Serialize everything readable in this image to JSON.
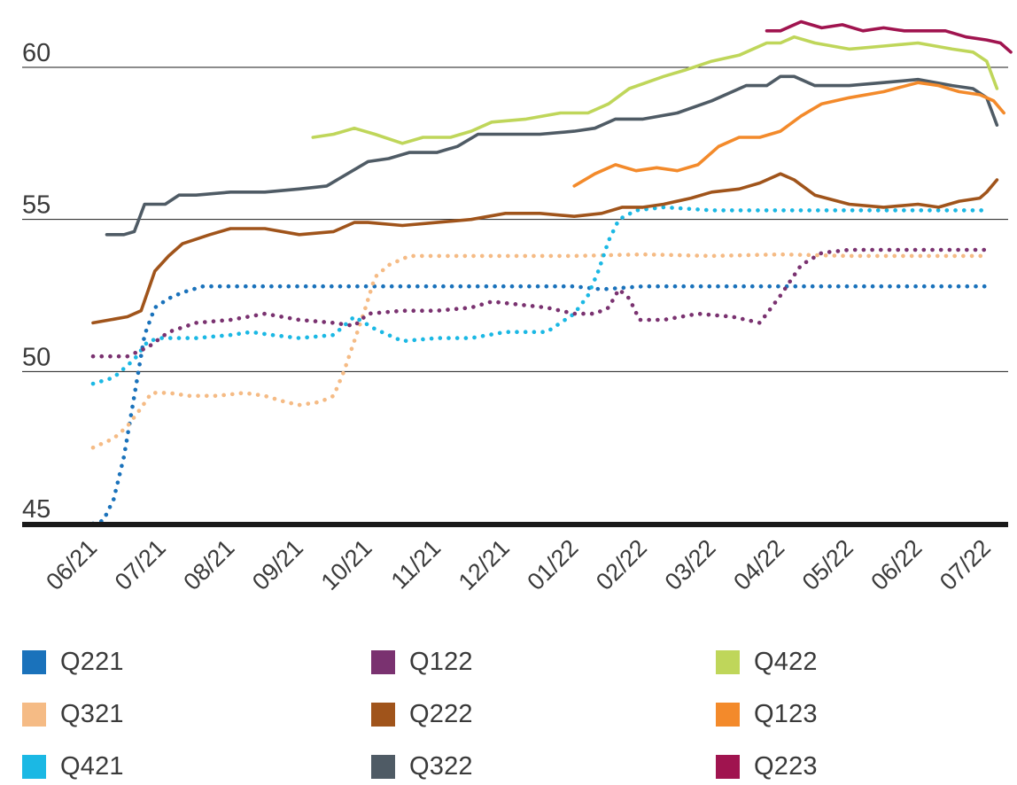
{
  "chart_data": {
    "type": "line",
    "title": "",
    "xlabel": "",
    "ylabel": "",
    "x_tick_labels": [
      "06/21",
      "07/21",
      "08/21",
      "09/21",
      "10/21",
      "11/21",
      "12/21",
      "01/22",
      "02/22",
      "03/22",
      "04/22",
      "05/22",
      "06/22",
      "07/22"
    ],
    "x_range_months": [
      0,
      13
    ],
    "y_ticks": [
      45,
      50,
      55,
      60
    ],
    "y_tick_labels": [
      "45",
      "50",
      "55",
      "60"
    ],
    "ylim": [
      45,
      62.5
    ],
    "grid": "horizontal",
    "legend_position": "bottom",
    "series": [
      {
        "name": "Q221",
        "color": "#1a72bb",
        "style": "dotted",
        "points": [
          [
            0,
            45
          ],
          [
            0.15,
            45.1
          ],
          [
            0.3,
            45.8
          ],
          [
            0.45,
            47.2
          ],
          [
            0.6,
            49.2
          ],
          [
            0.75,
            51.2
          ],
          [
            0.9,
            52.1
          ],
          [
            1.1,
            52.4
          ],
          [
            1.3,
            52.6
          ],
          [
            1.6,
            52.8
          ],
          [
            2,
            52.8
          ],
          [
            2.5,
            52.8
          ],
          [
            3,
            52.8
          ],
          [
            3.5,
            52.8
          ],
          [
            4,
            52.8
          ],
          [
            5,
            52.8
          ],
          [
            6,
            52.8
          ],
          [
            7,
            52.8
          ],
          [
            7.4,
            52.7
          ],
          [
            8,
            52.8
          ],
          [
            9,
            52.8
          ],
          [
            10,
            52.8
          ],
          [
            11,
            52.8
          ],
          [
            12,
            52.8
          ],
          [
            13,
            52.8
          ]
        ]
      },
      {
        "name": "Q321",
        "color": "#f5bb85",
        "style": "dotted",
        "points": [
          [
            0,
            47.5
          ],
          [
            0.3,
            47.8
          ],
          [
            0.5,
            48.2
          ],
          [
            0.7,
            48.8
          ],
          [
            0.85,
            49.3
          ],
          [
            1.1,
            49.3
          ],
          [
            1.4,
            49.2
          ],
          [
            1.8,
            49.2
          ],
          [
            2.2,
            49.3
          ],
          [
            2.5,
            49.2
          ],
          [
            2.8,
            49
          ],
          [
            3,
            48.9
          ],
          [
            3.3,
            49
          ],
          [
            3.5,
            49.2
          ],
          [
            3.65,
            50
          ],
          [
            3.8,
            51
          ],
          [
            3.95,
            52
          ],
          [
            4.1,
            53.1
          ],
          [
            4.3,
            53.5
          ],
          [
            4.6,
            53.8
          ],
          [
            5,
            53.8
          ],
          [
            6,
            53.8
          ],
          [
            7,
            53.8
          ],
          [
            8,
            53.85
          ],
          [
            9,
            53.8
          ],
          [
            10,
            53.85
          ],
          [
            11,
            53.8
          ],
          [
            12,
            53.8
          ],
          [
            13,
            53.8
          ]
        ]
      },
      {
        "name": "Q421",
        "color": "#1bb8e4",
        "style": "dotted",
        "points": [
          [
            0,
            49.6
          ],
          [
            0.3,
            49.8
          ],
          [
            0.6,
            50.4
          ],
          [
            0.8,
            51
          ],
          [
            1,
            51.1
          ],
          [
            1.5,
            51.1
          ],
          [
            2,
            51.2
          ],
          [
            2.3,
            51.3
          ],
          [
            2.6,
            51.2
          ],
          [
            3,
            51.1
          ],
          [
            3.5,
            51.2
          ],
          [
            3.8,
            51.8
          ],
          [
            4.1,
            51.4
          ],
          [
            4.5,
            51
          ],
          [
            5,
            51.1
          ],
          [
            5.5,
            51.1
          ],
          [
            6,
            51.3
          ],
          [
            6.6,
            51.3
          ],
          [
            7,
            51.9
          ],
          [
            7.2,
            52.5
          ],
          [
            7.35,
            53.3
          ],
          [
            7.5,
            54.3
          ],
          [
            7.65,
            55
          ],
          [
            7.9,
            55.3
          ],
          [
            8.3,
            55.4
          ],
          [
            9,
            55.3
          ],
          [
            10,
            55.3
          ],
          [
            11,
            55.3
          ],
          [
            12,
            55.3
          ],
          [
            13,
            55.3
          ]
        ]
      },
      {
        "name": "Q122",
        "color": "#7a3270",
        "style": "dotted",
        "points": [
          [
            0,
            50.5
          ],
          [
            0.5,
            50.5
          ],
          [
            0.8,
            50.8
          ],
          [
            1.1,
            51.3
          ],
          [
            1.5,
            51.6
          ],
          [
            2,
            51.7
          ],
          [
            2.5,
            51.9
          ],
          [
            3,
            51.7
          ],
          [
            3.5,
            51.6
          ],
          [
            3.8,
            51.5
          ],
          [
            4,
            51.9
          ],
          [
            4.5,
            52.0
          ],
          [
            5,
            52.0
          ],
          [
            5.5,
            52.1
          ],
          [
            5.8,
            52.3
          ],
          [
            6.2,
            52.2
          ],
          [
            6.6,
            52.1
          ],
          [
            7,
            51.9
          ],
          [
            7.3,
            51.9
          ],
          [
            7.5,
            52.1
          ],
          [
            7.65,
            52.7
          ],
          [
            7.8,
            52.4
          ],
          [
            7.95,
            51.7
          ],
          [
            8.3,
            51.7
          ],
          [
            8.8,
            51.9
          ],
          [
            9.3,
            51.8
          ],
          [
            9.7,
            51.6
          ],
          [
            10,
            52.5
          ],
          [
            10.3,
            53.5
          ],
          [
            10.6,
            53.9
          ],
          [
            11,
            54
          ],
          [
            11.5,
            54
          ],
          [
            12,
            54
          ],
          [
            12.5,
            54
          ],
          [
            13,
            54
          ]
        ]
      },
      {
        "name": "Q222",
        "color": "#a0541b",
        "style": "solid",
        "points": [
          [
            0,
            51.6
          ],
          [
            0.5,
            51.8
          ],
          [
            0.7,
            52
          ],
          [
            0.9,
            53.3
          ],
          [
            1.1,
            53.8
          ],
          [
            1.3,
            54.2
          ],
          [
            1.7,
            54.5
          ],
          [
            2,
            54.7
          ],
          [
            2.5,
            54.7
          ],
          [
            3,
            54.5
          ],
          [
            3.5,
            54.6
          ],
          [
            3.8,
            54.9
          ],
          [
            4,
            54.9
          ],
          [
            4.5,
            54.8
          ],
          [
            5,
            54.9
          ],
          [
            5.5,
            55
          ],
          [
            6,
            55.2
          ],
          [
            6.5,
            55.2
          ],
          [
            7,
            55.1
          ],
          [
            7.4,
            55.2
          ],
          [
            7.7,
            55.4
          ],
          [
            8,
            55.4
          ],
          [
            8.3,
            55.5
          ],
          [
            8.7,
            55.7
          ],
          [
            9,
            55.9
          ],
          [
            9.4,
            56
          ],
          [
            9.7,
            56.2
          ],
          [
            10,
            56.5
          ],
          [
            10.2,
            56.3
          ],
          [
            10.5,
            55.8
          ],
          [
            11,
            55.5
          ],
          [
            11.5,
            55.4
          ],
          [
            12,
            55.5
          ],
          [
            12.3,
            55.4
          ],
          [
            12.6,
            55.6
          ],
          [
            12.9,
            55.7
          ],
          [
            13,
            55.9
          ],
          [
            13.15,
            56.3
          ]
        ]
      },
      {
        "name": "Q322",
        "color": "#4f5b65",
        "style": "solid",
        "points": [
          [
            0.2,
            54.5
          ],
          [
            0.45,
            54.5
          ],
          [
            0.6,
            54.6
          ],
          [
            0.75,
            55.5
          ],
          [
            1.05,
            55.5
          ],
          [
            1.25,
            55.8
          ],
          [
            1.5,
            55.8
          ],
          [
            2,
            55.9
          ],
          [
            2.5,
            55.9
          ],
          [
            3,
            56
          ],
          [
            3.4,
            56.1
          ],
          [
            4,
            56.9
          ],
          [
            4.3,
            57
          ],
          [
            4.6,
            57.2
          ],
          [
            5,
            57.2
          ],
          [
            5.3,
            57.4
          ],
          [
            5.6,
            57.8
          ],
          [
            6,
            57.8
          ],
          [
            6.5,
            57.8
          ],
          [
            7,
            57.9
          ],
          [
            7.3,
            58
          ],
          [
            7.6,
            58.3
          ],
          [
            8,
            58.3
          ],
          [
            8.5,
            58.5
          ],
          [
            9,
            58.9
          ],
          [
            9.5,
            59.4
          ],
          [
            9.8,
            59.4
          ],
          [
            10,
            59.7
          ],
          [
            10.2,
            59.7
          ],
          [
            10.5,
            59.4
          ],
          [
            11,
            59.4
          ],
          [
            11.5,
            59.5
          ],
          [
            12,
            59.6
          ],
          [
            12.5,
            59.4
          ],
          [
            12.8,
            59.3
          ],
          [
            13,
            59
          ],
          [
            13.15,
            58.1
          ]
        ]
      },
      {
        "name": "Q422",
        "color": "#bfd65a",
        "style": "solid",
        "points": [
          [
            3.2,
            57.7
          ],
          [
            3.5,
            57.8
          ],
          [
            3.8,
            58
          ],
          [
            4.1,
            57.8
          ],
          [
            4.5,
            57.5
          ],
          [
            4.8,
            57.7
          ],
          [
            5.2,
            57.7
          ],
          [
            5.5,
            57.9
          ],
          [
            5.8,
            58.2
          ],
          [
            6.3,
            58.3
          ],
          [
            6.8,
            58.5
          ],
          [
            7.2,
            58.5
          ],
          [
            7.5,
            58.8
          ],
          [
            7.8,
            59.3
          ],
          [
            8.3,
            59.7
          ],
          [
            8.6,
            59.9
          ],
          [
            9,
            60.2
          ],
          [
            9.4,
            60.4
          ],
          [
            9.8,
            60.8
          ],
          [
            10,
            60.8
          ],
          [
            10.2,
            61
          ],
          [
            10.5,
            60.8
          ],
          [
            11,
            60.6
          ],
          [
            11.5,
            60.7
          ],
          [
            12,
            60.8
          ],
          [
            12.5,
            60.6
          ],
          [
            12.8,
            60.5
          ],
          [
            13,
            60.2
          ],
          [
            13.15,
            59.3
          ]
        ]
      },
      {
        "name": "Q123",
        "color": "#f38a2b",
        "style": "solid",
        "points": [
          [
            7,
            56.1
          ],
          [
            7.3,
            56.5
          ],
          [
            7.6,
            56.8
          ],
          [
            7.9,
            56.6
          ],
          [
            8.2,
            56.7
          ],
          [
            8.5,
            56.6
          ],
          [
            8.8,
            56.8
          ],
          [
            9.1,
            57.4
          ],
          [
            9.4,
            57.7
          ],
          [
            9.7,
            57.7
          ],
          [
            10,
            57.9
          ],
          [
            10.3,
            58.4
          ],
          [
            10.6,
            58.8
          ],
          [
            11,
            59.0
          ],
          [
            11.5,
            59.2
          ],
          [
            12,
            59.5
          ],
          [
            12.3,
            59.4
          ],
          [
            12.6,
            59.2
          ],
          [
            12.9,
            59.1
          ],
          [
            13.1,
            58.9
          ],
          [
            13.25,
            58.5
          ]
        ]
      },
      {
        "name": "Q223",
        "color": "#a0144f",
        "style": "solid",
        "points": [
          [
            9.8,
            61.2
          ],
          [
            10,
            61.2
          ],
          [
            10.3,
            61.5
          ],
          [
            10.6,
            61.3
          ],
          [
            10.9,
            61.4
          ],
          [
            11.2,
            61.2
          ],
          [
            11.5,
            61.3
          ],
          [
            11.8,
            61.2
          ],
          [
            12.1,
            61.2
          ],
          [
            12.4,
            61.2
          ],
          [
            12.7,
            61
          ],
          [
            13,
            60.9
          ],
          [
            13.2,
            60.8
          ],
          [
            13.35,
            60.5
          ]
        ]
      }
    ]
  },
  "legend": {
    "columns": [
      [
        "Q221",
        "Q321",
        "Q421"
      ],
      [
        "Q122",
        "Q222",
        "Q322"
      ],
      [
        "Q422",
        "Q123",
        "Q223"
      ]
    ],
    "colors": {
      "Q221": "#1a72bb",
      "Q321": "#f5bb85",
      "Q421": "#1bb8e4",
      "Q122": "#7a3270",
      "Q222": "#a0541b",
      "Q322": "#4f5b65",
      "Q422": "#bfd65a",
      "Q123": "#f38a2b",
      "Q223": "#a0144f"
    }
  }
}
